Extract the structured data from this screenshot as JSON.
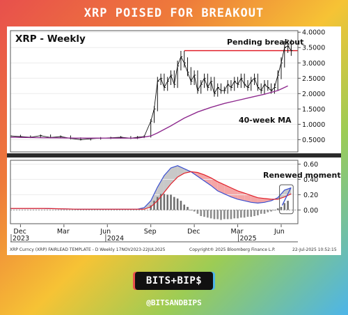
{
  "banner": {
    "title": "XRP POISED FOR BREAKOUT"
  },
  "footer": {
    "logo": "BITS+BIP$",
    "handle": "@BITSANDBIPS"
  },
  "colors": {
    "price": "#111111",
    "ma": "#8e2a8e",
    "breakout_line": "#e0202a",
    "macd": "#3a4fd0",
    "signal": "#e0202a",
    "hist": "#8a8a8a",
    "fill_up": "#c8c8c8",
    "fill_down": "#f4a6a6"
  },
  "chart_data": [
    {
      "type": "line",
      "title": "XRP - Weekly",
      "annotations": [
        "Pending breakout",
        "40-week MA"
      ],
      "y_ticks": [
        "4.0000",
        "3.5000",
        "3.0000",
        "2.5000",
        "2.0000",
        "1.5000",
        "1.0000",
        "0.5000"
      ],
      "ylim": [
        0.1,
        4.05
      ],
      "x_ticks": [
        "Dec",
        "Mar",
        "Jun",
        "Sep",
        "Dec",
        "Mar",
        "Jun"
      ],
      "x_year_labels": [
        "2023",
        "2024",
        "2025"
      ],
      "breakout_level": 3.4,
      "series": [
        {
          "name": "XRP price",
          "x": [
            0,
            3,
            6,
            9,
            12,
            15,
            18,
            21,
            24,
            27,
            30,
            33,
            36,
            38,
            40,
            42,
            43,
            44,
            45,
            46,
            47,
            48,
            49,
            50,
            51,
            52,
            53,
            54,
            55,
            56,
            57,
            58,
            59,
            60,
            61,
            62,
            63,
            64,
            65,
            66,
            67,
            68,
            69,
            70,
            71,
            72,
            73,
            74,
            75,
            76,
            77,
            78,
            79,
            80,
            81,
            82,
            83,
            84
          ],
          "values": [
            0.62,
            0.6,
            0.58,
            0.63,
            0.57,
            0.6,
            0.54,
            0.5,
            0.53,
            0.55,
            0.56,
            0.58,
            0.55,
            0.58,
            0.6,
            1.1,
            1.5,
            2.4,
            2.5,
            2.2,
            2.4,
            2.6,
            2.3,
            2.9,
            3.2,
            3.0,
            2.7,
            2.4,
            2.6,
            2.1,
            2.3,
            2.5,
            2.2,
            2.4,
            2.0,
            2.2,
            2.1,
            2.1,
            2.3,
            2.2,
            2.4,
            2.3,
            2.5,
            2.3,
            2.2,
            2.4,
            2.5,
            2.2,
            2.1,
            2.3,
            2.2,
            2.1,
            2.2,
            2.6,
            3.0,
            3.5,
            3.55,
            3.4
          ]
        },
        {
          "name": "40-week MA",
          "x": [
            0,
            10,
            20,
            30,
            38,
            42,
            44,
            48,
            52,
            56,
            60,
            64,
            68,
            72,
            76,
            80,
            83
          ],
          "values": [
            0.58,
            0.56,
            0.55,
            0.55,
            0.55,
            0.62,
            0.72,
            0.95,
            1.2,
            1.4,
            1.55,
            1.68,
            1.78,
            1.88,
            1.98,
            2.1,
            2.25
          ]
        }
      ]
    },
    {
      "type": "line",
      "annotations": [
        "Renewed momentum"
      ],
      "y_ticks": [
        "0.60",
        "0.40",
        "0.20",
        "0.00"
      ],
      "ylim": [
        -0.18,
        0.65
      ],
      "series": [
        {
          "name": "MACD",
          "x": [
            0,
            10,
            20,
            30,
            38,
            40,
            42,
            44,
            46,
            48,
            50,
            52,
            54,
            56,
            58,
            60,
            62,
            64,
            66,
            68,
            70,
            72,
            74,
            76,
            78,
            80,
            82,
            84
          ],
          "values": [
            0.02,
            0.02,
            0.01,
            0.01,
            0.01,
            0.03,
            0.12,
            0.3,
            0.45,
            0.55,
            0.58,
            0.54,
            0.5,
            0.44,
            0.38,
            0.32,
            0.25,
            0.21,
            0.17,
            0.14,
            0.12,
            0.1,
            0.09,
            0.1,
            0.12,
            0.16,
            0.26,
            0.29
          ]
        },
        {
          "name": "Signal",
          "x": [
            0,
            10,
            20,
            30,
            38,
            40,
            42,
            44,
            46,
            48,
            50,
            52,
            54,
            56,
            58,
            60,
            62,
            64,
            66,
            68,
            70,
            72,
            74,
            76,
            78,
            80,
            82,
            84
          ],
          "values": [
            0.02,
            0.02,
            0.01,
            0.01,
            0.01,
            0.01,
            0.04,
            0.12,
            0.23,
            0.34,
            0.43,
            0.48,
            0.5,
            0.49,
            0.46,
            0.42,
            0.37,
            0.33,
            0.29,
            0.25,
            0.22,
            0.19,
            0.16,
            0.15,
            0.14,
            0.14,
            0.17,
            0.21
          ]
        },
        {
          "name": "Histogram",
          "x": [
            42,
            43,
            44,
            45,
            46,
            47,
            48,
            49,
            50,
            51,
            52,
            53,
            54,
            55,
            56,
            57,
            58,
            59,
            60,
            61,
            62,
            63,
            64,
            65,
            66,
            67,
            68,
            69,
            70,
            71,
            72,
            73,
            74,
            75,
            76,
            77,
            78,
            79,
            80,
            81,
            82,
            83
          ],
          "values": [
            0.06,
            0.12,
            0.17,
            0.21,
            0.21,
            0.2,
            0.2,
            0.17,
            0.15,
            0.12,
            0.07,
            0.04,
            0.0,
            -0.02,
            -0.05,
            -0.08,
            -0.09,
            -0.1,
            -0.11,
            -0.12,
            -0.12,
            -0.13,
            -0.12,
            -0.12,
            -0.12,
            -0.11,
            -0.11,
            -0.1,
            -0.1,
            -0.09,
            -0.09,
            -0.08,
            -0.07,
            -0.05,
            -0.05,
            -0.03,
            -0.02,
            0.0,
            0.02,
            0.04,
            0.09,
            0.12
          ]
        }
      ]
    }
  ],
  "footer_text": {
    "left": "XRP Curncy (XRP) FAIRLEAD TEMPLATE - D  Weekly 17NOV2023-22JUL2025",
    "center": "Copyright® 2025 Bloomberg Finance L.P.",
    "right": "22-Jul-2025 10:52:15"
  }
}
